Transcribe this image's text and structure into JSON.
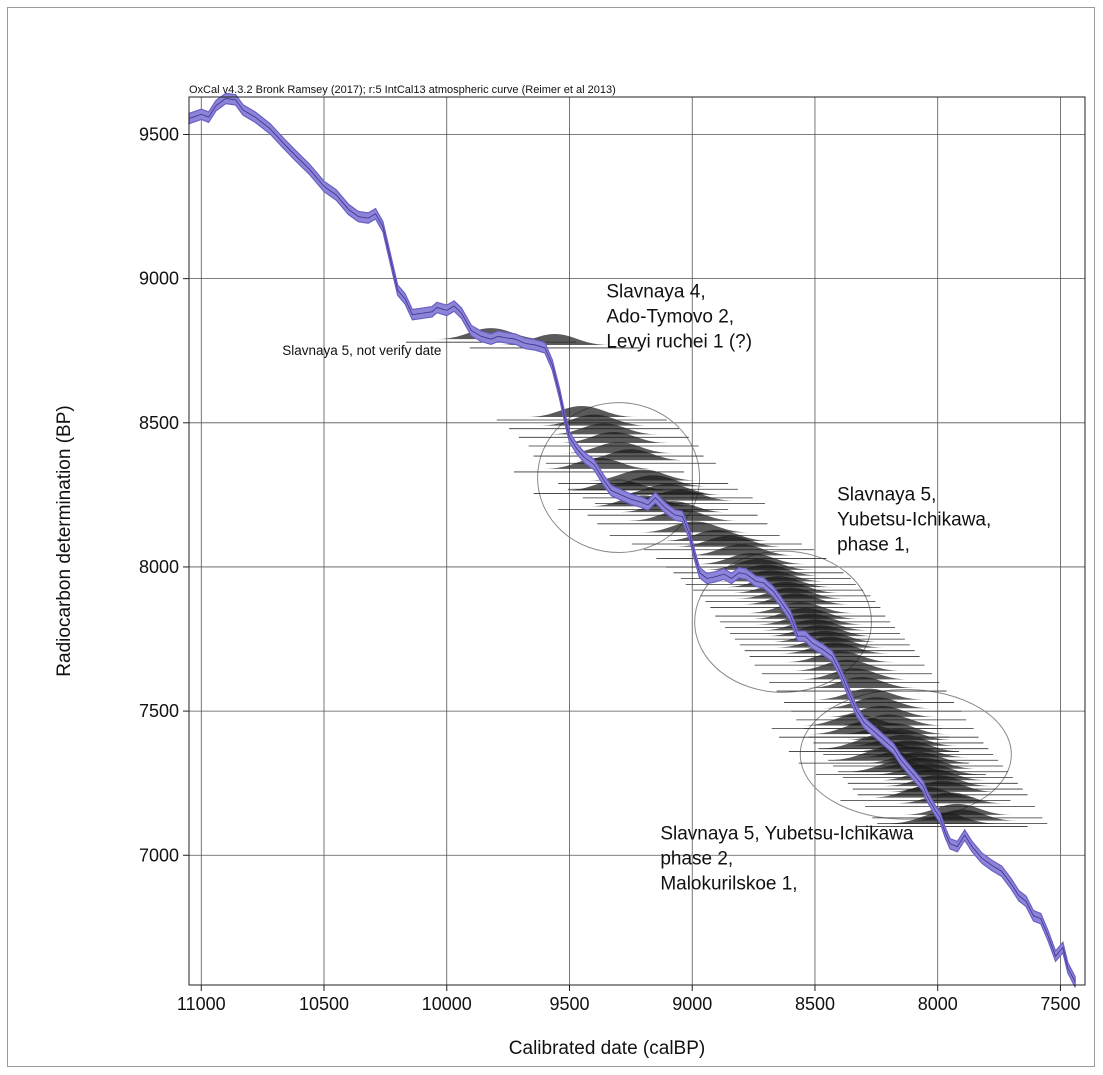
{
  "chart_data": {
    "type": "area",
    "header": "OxCal v4.3.2 Bronk Ramsey (2017); r:5 IntCal13 atmospheric curve (Reimer et al 2013)",
    "xlabel": "Calibrated date (calBP)",
    "ylabel": "Radiocarbon determination (BP)",
    "xlim": [
      11050,
      7400
    ],
    "ylim": [
      6550,
      9630
    ],
    "x_reversed": true,
    "grid": true,
    "x_ticks": [
      11000,
      10500,
      10000,
      9500,
      9000,
      8500,
      8000,
      7500
    ],
    "x_tick_labels": [
      "11000",
      "10500",
      "10000",
      "9500",
      "9000",
      "8500",
      "8000",
      "7500"
    ],
    "y_ticks": [
      9500,
      9000,
      8500,
      8000,
      7500,
      7000
    ],
    "y_tick_labels": [
      "9500",
      "9000",
      "8500",
      "8000",
      "7500",
      "7000"
    ],
    "curve_color": "#6b5fc6",
    "curve_fill": "#8c84d6",
    "series": [
      {
        "points": [
          [
            11050,
            9555
          ],
          [
            11000,
            9570
          ],
          [
            10970,
            9560
          ],
          [
            10940,
            9600
          ],
          [
            10900,
            9625
          ],
          [
            10860,
            9620
          ],
          [
            10830,
            9585
          ],
          [
            10780,
            9560
          ],
          [
            10720,
            9520
          ],
          [
            10660,
            9465
          ],
          [
            10620,
            9430
          ],
          [
            10560,
            9380
          ],
          [
            10500,
            9320
          ],
          [
            10450,
            9290
          ],
          [
            10400,
            9240
          ],
          [
            10360,
            9215
          ],
          [
            10320,
            9210
          ],
          [
            10290,
            9225
          ],
          [
            10260,
            9180
          ],
          [
            10230,
            9070
          ],
          [
            10200,
            8960
          ],
          [
            10170,
            8930
          ],
          [
            10140,
            8875
          ],
          [
            10100,
            8880
          ],
          [
            10060,
            8885
          ],
          [
            10040,
            8900
          ],
          [
            10000,
            8890
          ],
          [
            9970,
            8905
          ],
          [
            9940,
            8880
          ],
          [
            9900,
            8820
          ],
          [
            9860,
            8800
          ],
          [
            9820,
            8790
          ],
          [
            9790,
            8800
          ],
          [
            9760,
            8795
          ],
          [
            9720,
            8790
          ],
          [
            9680,
            8775
          ],
          [
            9640,
            8770
          ],
          [
            9600,
            8760
          ],
          [
            9570,
            8700
          ],
          [
            9540,
            8600
          ],
          [
            9520,
            8520
          ],
          [
            9500,
            8450
          ],
          [
            9470,
            8410
          ],
          [
            9440,
            8380
          ],
          [
            9400,
            8355
          ],
          [
            9360,
            8300
          ],
          [
            9330,
            8265
          ],
          [
            9290,
            8250
          ],
          [
            9250,
            8235
          ],
          [
            9210,
            8225
          ],
          [
            9180,
            8215
          ],
          [
            9150,
            8240
          ],
          [
            9110,
            8205
          ],
          [
            9070,
            8180
          ],
          [
            9040,
            8175
          ],
          [
            9010,
            8110
          ],
          [
            8990,
            8040
          ],
          [
            8970,
            7980
          ],
          [
            8940,
            7960
          ],
          [
            8910,
            7965
          ],
          [
            8870,
            7975
          ],
          [
            8840,
            7960
          ],
          [
            8810,
            7980
          ],
          [
            8780,
            7975
          ],
          [
            8740,
            7950
          ],
          [
            8710,
            7945
          ],
          [
            8670,
            7915
          ],
          [
            8640,
            7880
          ],
          [
            8600,
            7830
          ],
          [
            8570,
            7760
          ],
          [
            8540,
            7760
          ],
          [
            8510,
            7735
          ],
          [
            8470,
            7715
          ],
          [
            8430,
            7690
          ],
          [
            8400,
            7640
          ],
          [
            8370,
            7580
          ],
          [
            8330,
            7500
          ],
          [
            8300,
            7460
          ],
          [
            8260,
            7430
          ],
          [
            8220,
            7400
          ],
          [
            8180,
            7370
          ],
          [
            8150,
            7330
          ],
          [
            8120,
            7300
          ],
          [
            8090,
            7270
          ],
          [
            8060,
            7240
          ],
          [
            8040,
            7200
          ],
          [
            8010,
            7155
          ],
          [
            7990,
            7130
          ],
          [
            7970,
            7080
          ],
          [
            7950,
            7040
          ],
          [
            7920,
            7030
          ],
          [
            7890,
            7070
          ],
          [
            7860,
            7030
          ],
          [
            7820,
            6990
          ],
          [
            7780,
            6965
          ],
          [
            7740,
            6945
          ],
          [
            7700,
            6900
          ],
          [
            7670,
            6860
          ],
          [
            7640,
            6840
          ],
          [
            7610,
            6790
          ],
          [
            7580,
            6780
          ],
          [
            7550,
            6720
          ],
          [
            7520,
            6650
          ],
          [
            7490,
            6680
          ],
          [
            7470,
            6610
          ],
          [
            7440,
            6560
          ]
        ],
        "band_width": 18
      }
    ],
    "calibrated_dates": [
      [
        9560,
        8770
      ],
      [
        9820,
        8790
      ],
      [
        9450,
        8520
      ],
      [
        9400,
        8490
      ],
      [
        9360,
        8460
      ],
      [
        9320,
        8430
      ],
      [
        9300,
        8395
      ],
      [
        9250,
        8370
      ],
      [
        9380,
        8340
      ],
      [
        9200,
        8300
      ],
      [
        9160,
        8280
      ],
      [
        9300,
        8265
      ],
      [
        9100,
        8250
      ],
      [
        9050,
        8230
      ],
      [
        9200,
        8210
      ],
      [
        9080,
        8190
      ],
      [
        9040,
        8160
      ],
      [
        8990,
        8120
      ],
      [
        8900,
        8090
      ],
      [
        8850,
        8070
      ],
      [
        8800,
        8040
      ],
      [
        8760,
        8010
      ],
      [
        8730,
        7990
      ],
      [
        8700,
        7970
      ],
      [
        8680,
        7950
      ],
      [
        8650,
        7930
      ],
      [
        8620,
        7910
      ],
      [
        8600,
        7890
      ],
      [
        8580,
        7870
      ],
      [
        8560,
        7840
      ],
      [
        8540,
        7820
      ],
      [
        8520,
        7800
      ],
      [
        8500,
        7780
      ],
      [
        8480,
        7760
      ],
      [
        8460,
        7740
      ],
      [
        8440,
        7720
      ],
      [
        8420,
        7700
      ],
      [
        8400,
        7670
      ],
      [
        8370,
        7640
      ],
      [
        8340,
        7610
      ],
      [
        8310,
        7580
      ],
      [
        8280,
        7540
      ],
      [
        8250,
        7510
      ],
      [
        8230,
        7480
      ],
      [
        8200,
        7450
      ],
      [
        8180,
        7420
      ],
      [
        8160,
        7400
      ],
      [
        8140,
        7380
      ],
      [
        8120,
        7360
      ],
      [
        8100,
        7340
      ],
      [
        8080,
        7320
      ],
      [
        8060,
        7300
      ],
      [
        8040,
        7280
      ],
      [
        8020,
        7260
      ],
      [
        8000,
        7240
      ],
      [
        7980,
        7220
      ],
      [
        8050,
        7200
      ],
      [
        7950,
        7180
      ],
      [
        7920,
        7140
      ],
      [
        7900,
        7120
      ],
      [
        7980,
        7110
      ],
      [
        8300,
        7420
      ],
      [
        8220,
        7330
      ],
      [
        8150,
        7290
      ],
      [
        8330,
        7450
      ],
      [
        8260,
        7370
      ]
    ],
    "ellipses": [
      {
        "center": [
          9300,
          8310
        ],
        "radius_cal": 330,
        "radius_bp": 260
      },
      {
        "center": [
          8630,
          7810
        ],
        "radius_cal": 360,
        "radius_bp": 245
      },
      {
        "center": [
          8130,
          7350
        ],
        "radius_cal": 430,
        "radius_bp": 225
      }
    ],
    "annotations": [
      {
        "id": "group1",
        "lines": [
          "Slavnaya 4,",
          "Ado-Tymovo 2,",
          "Levyi ruchei 1 (?)"
        ],
        "at": [
          9350,
          8935
        ]
      },
      {
        "id": "group2",
        "lines": [
          "Slavnaya 5,",
          "Yubetsu-Ichikawa,",
          "phase 1,"
        ],
        "at": [
          8410,
          8230
        ]
      },
      {
        "id": "group3",
        "lines": [
          "Slavnaya 5, Yubetsu-Ichikawa",
          "phase 2,",
          "Malokurilskoe 1,"
        ],
        "at": [
          9130,
          7055
        ]
      },
      {
        "id": "outlier",
        "lines": [
          "Slavnaya 5, not verify date"
        ],
        "at": [
          10670,
          8735
        ]
      }
    ]
  }
}
